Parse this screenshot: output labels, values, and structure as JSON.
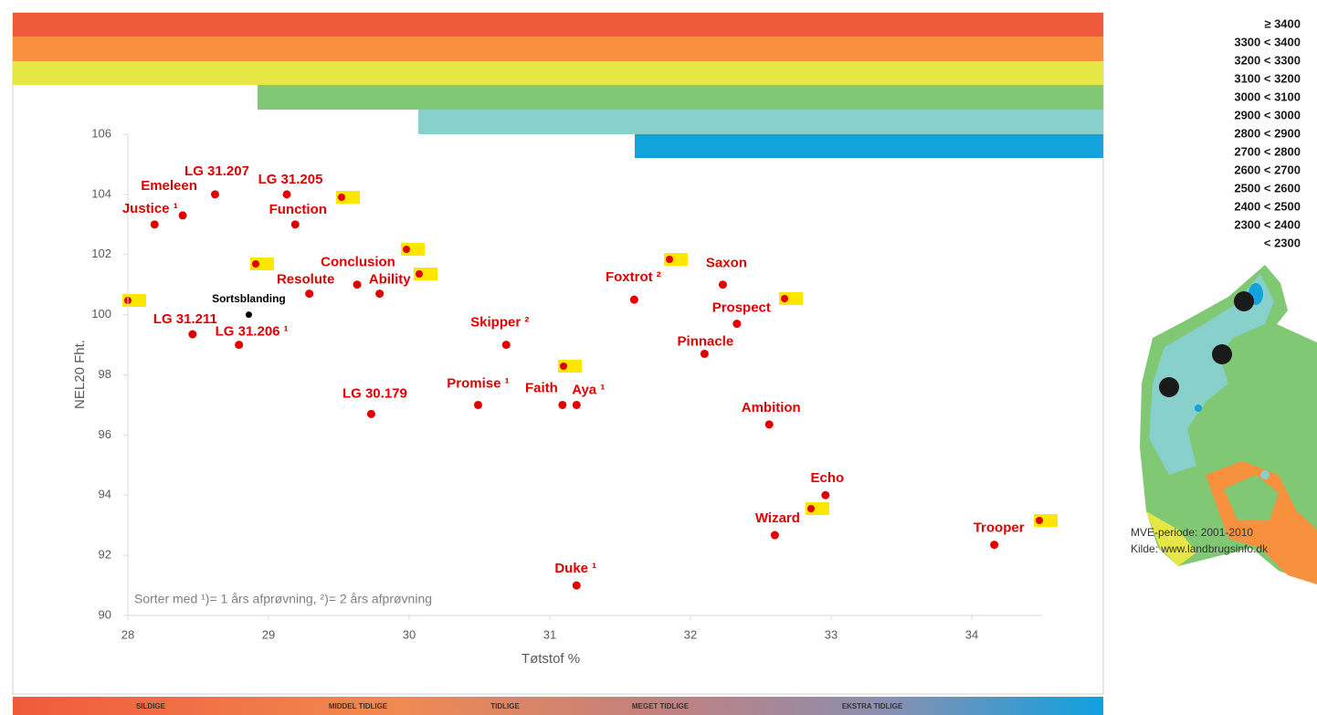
{
  "chart_data": {
    "type": "scatter",
    "x_label": "Tøtstof %",
    "y_label": "NEL20 Fht.",
    "xlim": [
      28,
      34.5
    ],
    "xticks": [
      28,
      29,
      30,
      31,
      32,
      33,
      34
    ],
    "ylim": [
      90,
      106
    ],
    "yticks": [
      90,
      92,
      94,
      96,
      98,
      100,
      102,
      104,
      106
    ],
    "color": "#e00000",
    "reference_color": "#000000",
    "labels": [
      "Justice ¹",
      "Emeleen",
      "LG 31.207",
      "LG 31.205",
      "Function",
      "Sortsblanding",
      "LG 31.211",
      "LG 31.206 ¹",
      "Resolute",
      "Conclusion",
      "Ability",
      "LG 30.179",
      "Skipper ²",
      "Promise ¹",
      "Faith",
      "Aya ¹",
      "Duke ¹",
      "Foxtrot ²",
      "Saxon",
      "Prospect",
      "Pinnacle",
      "Ambition",
      "Echo",
      "Wizard",
      "Trooper"
    ],
    "x": [
      28.19,
      28.39,
      28.62,
      29.13,
      29.19,
      28.86,
      28.46,
      28.79,
      29.29,
      29.63,
      29.79,
      29.73,
      30.69,
      30.49,
      31.09,
      31.19,
      31.19,
      31.6,
      32.23,
      32.33,
      32.1,
      32.56,
      32.96,
      32.6,
      34.16
    ],
    "values": [
      103.0,
      103.3,
      104.0,
      104.0,
      103.0,
      100.0,
      99.35,
      99.0,
      100.7,
      101.0,
      100.7,
      96.7,
      99.0,
      97.0,
      97.0,
      97.0,
      91.0,
      100.5,
      101.0,
      99.7,
      98.7,
      96.35,
      94.0,
      92.67,
      92.35
    ],
    "reference_index": 5,
    "note": "Sorter med ¹)= 1 års afprøvning, ²)= 2 års afprøvning",
    "legend_labels": [
      "≥ 3400",
      "3300 < 3400",
      "3200 < 3300",
      "3100 < 3200",
      "3000 < 3100",
      "2900 < 3000",
      "2800 < 2900",
      "2700 < 2800",
      "2600 < 2700",
      "2500 < 2600",
      "2400 < 2500",
      "2300 < 2400",
      "< 2300"
    ],
    "source_lines": [
      "MVE-periode: 2001-2010",
      "Kilde: www.landbrugsinfo.dk"
    ],
    "maturity_labels": [
      "SILDIGE",
      "MIDDEL TIDLIGE",
      "TIDLIGE",
      "MEGET TIDLIGE",
      "EKSTRA TIDLIGE"
    ]
  }
}
